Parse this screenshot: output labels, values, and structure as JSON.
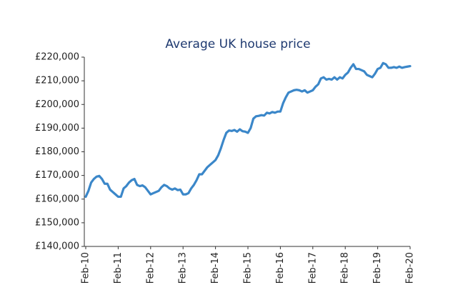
{
  "chart_data": {
    "type": "line",
    "title": "Average UK house price",
    "categories": [
      "Feb-10",
      null,
      null,
      null,
      null,
      null,
      null,
      null,
      null,
      null,
      null,
      null,
      "Feb-11",
      null,
      null,
      null,
      null,
      null,
      null,
      null,
      null,
      null,
      null,
      null,
      "Feb-12",
      null,
      null,
      null,
      null,
      null,
      null,
      null,
      null,
      null,
      null,
      null,
      "Feb-13",
      null,
      null,
      null,
      null,
      null,
      null,
      null,
      null,
      null,
      null,
      null,
      "Feb-14",
      null,
      null,
      null,
      null,
      null,
      null,
      null,
      null,
      null,
      null,
      null,
      "Feb-15",
      null,
      null,
      null,
      null,
      null,
      null,
      null,
      null,
      null,
      null,
      null,
      "Feb-16",
      null,
      null,
      null,
      null,
      null,
      null,
      null,
      null,
      null,
      null,
      null,
      "Feb-17",
      null,
      null,
      null,
      null,
      null,
      null,
      null,
      null,
      null,
      null,
      null,
      "Feb-18",
      null,
      null,
      null,
      null,
      null,
      null,
      null,
      null,
      null,
      null,
      null,
      "Feb-19",
      null,
      null,
      null,
      null,
      null,
      null,
      null,
      null,
      null,
      null,
      null,
      "Feb-20"
    ],
    "values": [
      161000,
      163500,
      167000,
      168500,
      169500,
      169800,
      168500,
      166500,
      166500,
      164000,
      163000,
      162000,
      161000,
      161000,
      164500,
      165500,
      167000,
      168000,
      168500,
      166000,
      165500,
      165800,
      165000,
      163500,
      162000,
      162500,
      163000,
      163500,
      165000,
      166000,
      165500,
      164500,
      164000,
      164500,
      163800,
      164000,
      162000,
      162000,
      162500,
      164500,
      166000,
      168000,
      170500,
      170500,
      172000,
      173500,
      174500,
      175500,
      176500,
      178500,
      181500,
      185000,
      188000,
      189000,
      188800,
      189200,
      188500,
      189500,
      188700,
      188500,
      188000,
      190000,
      194000,
      195000,
      195200,
      195500,
      195300,
      196500,
      196200,
      196800,
      196500,
      197000,
      197000,
      200500,
      203000,
      205000,
      205500,
      206000,
      206200,
      206000,
      205500,
      206000,
      205000,
      205500,
      206000,
      207500,
      208500,
      211000,
      211500,
      210500,
      210800,
      210500,
      211500,
      210500,
      211500,
      211000,
      212500,
      213500,
      215500,
      217000,
      215000,
      215000,
      214500,
      214000,
      212500,
      212000,
      211500,
      213000,
      215000,
      215500,
      217500,
      217000,
      215500,
      215500,
      215800,
      215500,
      216000,
      215500,
      215800,
      216000,
      216200
    ],
    "color": "#3b87c9",
    "ylim": [
      140000,
      220000
    ],
    "yticks": [
      {
        "value": 140000,
        "label": "£140,000"
      },
      {
        "value": 150000,
        "label": "£150,000"
      },
      {
        "value": 160000,
        "label": "£160,000"
      },
      {
        "value": 170000,
        "label": "£170,000"
      },
      {
        "value": 180000,
        "label": "£180,000"
      },
      {
        "value": 190000,
        "label": "£190,000"
      },
      {
        "value": 200000,
        "label": "£200,000"
      },
      {
        "value": 210000,
        "label": "£210,000"
      },
      {
        "value": 220000,
        "label": "£220,000"
      }
    ],
    "grid": false
  }
}
